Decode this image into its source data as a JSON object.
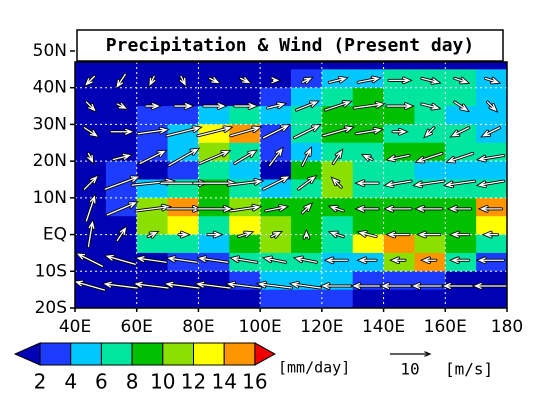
{
  "chart_data": {
    "type": "map",
    "title": "Precipitation & Wind (Present day)",
    "xlim": [
      40,
      180
    ],
    "ylim": [
      -20,
      47
    ],
    "xticks": [
      {
        "value": 40,
        "label": "40E"
      },
      {
        "value": 60,
        "label": "60E"
      },
      {
        "value": 80,
        "label": "80E"
      },
      {
        "value": 100,
        "label": "100E"
      },
      {
        "value": 120,
        "label": "120E"
      },
      {
        "value": 140,
        "label": "140E"
      },
      {
        "value": 160,
        "label": "160E"
      },
      {
        "value": 180,
        "label": "180"
      }
    ],
    "yticks": [
      {
        "value": 50,
        "label": "50N"
      },
      {
        "value": 40,
        "label": "40N"
      },
      {
        "value": 30,
        "label": "30N"
      },
      {
        "value": 20,
        "label": "20N"
      },
      {
        "value": 10,
        "label": "10N"
      },
      {
        "value": 0,
        "label": "EQ"
      },
      {
        "value": -10,
        "label": "10S"
      },
      {
        "value": -20,
        "label": "20S"
      }
    ],
    "grid": true,
    "precip": {
      "lon": [
        45,
        55,
        65,
        75,
        85,
        95,
        105,
        115,
        125,
        135,
        145,
        155,
        165,
        175
      ],
      "lat": [
        42.5,
        37.5,
        32.5,
        27.5,
        22.5,
        17.5,
        12.5,
        7.5,
        2.5,
        -2.5,
        -7.5,
        -12.5,
        -17.5
      ],
      "values": [
        [
          1,
          1,
          1,
          1,
          1,
          1,
          1,
          2,
          4,
          5,
          6,
          7,
          6,
          5
        ],
        [
          1,
          1,
          1,
          1,
          1,
          1,
          2,
          5,
          7,
          8,
          7,
          6,
          6,
          5
        ],
        [
          1,
          1,
          2,
          3,
          5,
          6,
          4,
          6,
          8,
          9,
          8,
          6,
          5,
          4
        ],
        [
          1,
          1,
          3,
          4,
          12,
          14,
          2,
          7,
          8,
          8,
          7,
          7,
          6,
          5
        ],
        [
          1,
          1,
          2,
          4,
          10,
          6,
          2,
          4,
          6,
          7,
          8,
          8,
          7,
          6
        ],
        [
          1,
          2,
          1,
          2,
          6,
          4,
          1,
          8,
          10,
          7,
          6,
          5,
          5,
          4
        ],
        [
          1,
          2,
          4,
          6,
          9,
          6,
          4,
          7,
          10,
          7,
          6,
          6,
          6,
          6
        ],
        [
          1,
          2,
          10,
          14,
          8,
          10,
          8,
          8,
          9,
          8,
          8,
          8,
          8,
          14
        ],
        [
          1,
          1,
          10,
          12,
          6,
          12,
          10,
          8,
          6,
          8,
          8,
          8,
          8,
          12
        ],
        [
          1,
          1,
          6,
          6,
          4,
          8,
          10,
          8,
          6,
          12,
          14,
          10,
          8,
          6
        ],
        [
          1,
          1,
          1,
          2,
          2,
          6,
          6,
          6,
          4,
          4,
          10,
          14,
          6,
          3
        ],
        [
          1,
          1,
          1,
          1,
          1,
          2,
          4,
          4,
          4,
          3,
          2,
          2,
          1,
          1
        ],
        [
          1,
          1,
          1,
          1,
          1,
          1,
          2,
          2,
          2,
          1,
          1,
          1,
          1,
          1
        ]
      ]
    },
    "wind": {
      "lon": [
        45,
        55,
        65,
        75,
        85,
        95,
        105,
        115,
        125,
        135,
        145,
        155,
        165,
        175
      ],
      "lat": [
        42,
        35,
        28,
        21,
        14,
        7,
        0,
        -7,
        -14
      ],
      "u": [
        [
          -2,
          -2,
          -1,
          1,
          2,
          2,
          1,
          2,
          4,
          5,
          5,
          4,
          3,
          3
        ],
        [
          2,
          2,
          3,
          4,
          5,
          5,
          4,
          5,
          6,
          7,
          6,
          4,
          3,
          2
        ],
        [
          3,
          5,
          7,
          8,
          8,
          7,
          6,
          6,
          7,
          6,
          3,
          -2,
          -4,
          -4
        ],
        [
          1,
          4,
          6,
          7,
          7,
          5,
          3,
          2,
          2,
          -2,
          -5,
          -6,
          -6,
          -6
        ],
        [
          3,
          8,
          10,
          11,
          10,
          8,
          6,
          4,
          -2,
          -5,
          -6,
          -7,
          -7,
          -6
        ],
        [
          2,
          7,
          8,
          8,
          8,
          7,
          5,
          2,
          -3,
          -5,
          -6,
          -6,
          -5,
          -5
        ],
        [
          1,
          2,
          2,
          2,
          3,
          3,
          2,
          0,
          -3,
          -4,
          -5,
          -5,
          -4,
          -3
        ],
        [
          -6,
          -7,
          -7,
          -7,
          -7,
          -6,
          -5,
          -5,
          -5,
          -4,
          -3,
          -3,
          -4,
          -6
        ],
        [
          -7,
          -8,
          -8,
          -8,
          -8,
          -8,
          -8,
          -7,
          -7,
          -7,
          -8,
          -8,
          -8,
          -8
        ]
      ],
      "v": [
        [
          -2,
          -3,
          -2,
          -2,
          -1,
          -1,
          0,
          1,
          1,
          1,
          0,
          -1,
          -1,
          -1
        ],
        [
          -2,
          -1,
          0,
          0,
          0,
          0,
          1,
          2,
          2,
          1,
          0,
          -1,
          -2,
          -2
        ],
        [
          -2,
          0,
          1,
          2,
          2,
          2,
          3,
          3,
          2,
          1,
          0,
          -2,
          -2,
          -2
        ],
        [
          -2,
          1,
          3,
          4,
          3,
          3,
          4,
          4,
          3,
          1,
          -1,
          -2,
          -2,
          -1
        ],
        [
          3,
          3,
          1,
          0,
          0,
          1,
          3,
          3,
          2,
          0,
          -1,
          -1,
          -1,
          -1
        ],
        [
          6,
          3,
          1,
          0,
          0,
          1,
          1,
          2,
          1,
          0,
          0,
          0,
          0,
          0
        ],
        [
          6,
          3,
          1,
          0,
          0,
          1,
          1,
          1,
          1,
          1,
          0,
          0,
          0,
          0
        ],
        [
          3,
          2,
          1,
          1,
          1,
          1,
          1,
          1,
          0,
          0,
          0,
          0,
          0,
          0
        ],
        [
          2,
          1,
          1,
          1,
          1,
          1,
          1,
          1,
          0,
          0,
          0,
          0,
          0,
          0
        ]
      ],
      "reference": 10,
      "unit": "[m/s]"
    },
    "colorbar": {
      "ticks": [
        2,
        4,
        6,
        8,
        10,
        12,
        14,
        16
      ],
      "colors": [
        "#0000b4",
        "#1e3cff",
        "#00c8ff",
        "#00e6a0",
        "#00c000",
        "#8ce000",
        "#ffff00",
        "#ff9600",
        "#f00000"
      ],
      "unit": "[mm/day]"
    }
  }
}
